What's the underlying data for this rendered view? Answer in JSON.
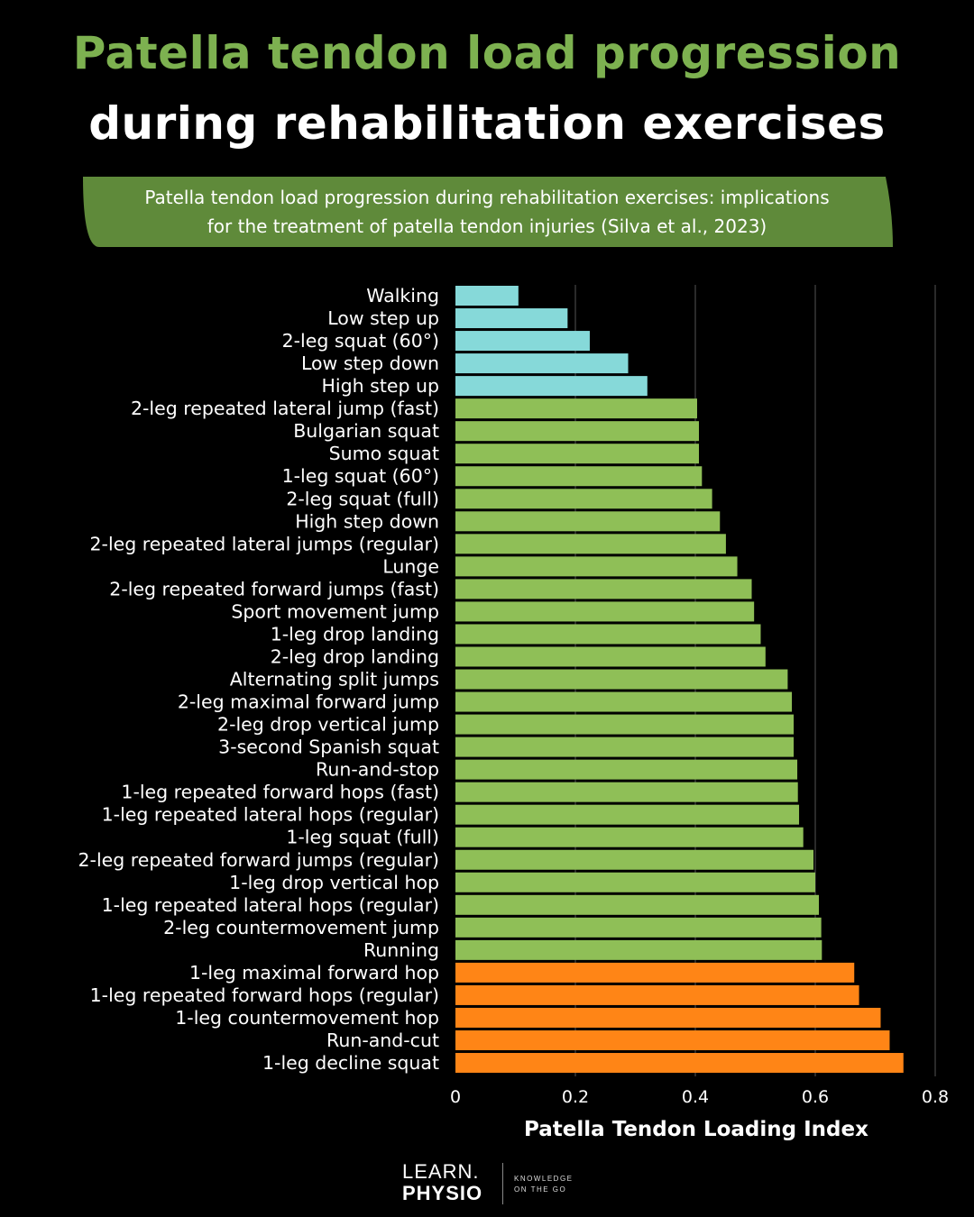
{
  "header": {
    "title_line1": "Patella tendon load progression",
    "title_line2": "during rehabilitation exercises",
    "subtitle_line1": "Patella tendon load progression during rehabilitation exercises: implications",
    "subtitle_line2": "for the treatment of patella tendon injuries (Silva et al., 2023)"
  },
  "colors": {
    "title_green": "#7db150",
    "banner_green": "#5f8a3a",
    "low": "#86d9d9",
    "moderate": "#8fbf57",
    "high": "#ff8516",
    "grid": "#555555"
  },
  "chart_data": {
    "type": "bar",
    "orientation": "horizontal",
    "xlabel": "Patella Tendon Loading Index",
    "ylabel": "",
    "xlim": [
      0,
      0.8
    ],
    "xticks": [
      "0",
      "0.2",
      "0.4",
      "0.6",
      "0.8"
    ],
    "grid": "vertical",
    "categories": [
      "Walking",
      "Low step up",
      "2-leg squat (60°)",
      "Low step down",
      "High step up",
      "2-leg repeated lateral jump (fast)",
      "Bulgarian squat",
      "Sumo squat",
      "1-leg squat (60°)",
      "2-leg squat (full)",
      "High step down",
      "2-leg repeated lateral jumps (regular)",
      "Lunge",
      "2-leg repeated forward jumps (fast)",
      "Sport movement jump",
      "1-leg drop landing",
      "2-leg drop landing",
      "Alternating split jumps",
      "2-leg maximal forward jump",
      "2-leg drop vertical jump",
      "3-second Spanish squat",
      "Run-and-stop",
      "1-leg repeated forward hops (fast)",
      "1-leg repeated lateral hops (regular)",
      "1-leg squat (full)",
      "2-leg repeated forward jumps (regular)",
      "1-leg drop vertical hop",
      "1-leg repeated lateral hops (regular)",
      "2-leg countermovement jump",
      "Running",
      "1-leg maximal forward hop",
      "1-leg repeated forward hops (regular)",
      "1-leg countermovement hop",
      "Run-and-cut",
      "1-leg decline squat"
    ],
    "values": [
      0.105,
      0.187,
      0.224,
      0.288,
      0.32,
      0.403,
      0.406,
      0.406,
      0.411,
      0.428,
      0.441,
      0.451,
      0.47,
      0.494,
      0.498,
      0.509,
      0.517,
      0.554,
      0.561,
      0.564,
      0.564,
      0.57,
      0.571,
      0.573,
      0.58,
      0.597,
      0.6,
      0.606,
      0.61,
      0.611,
      0.665,
      0.673,
      0.709,
      0.724,
      0.747
    ],
    "groups": [
      "low",
      "low",
      "low",
      "low",
      "low",
      "moderate",
      "moderate",
      "moderate",
      "moderate",
      "moderate",
      "moderate",
      "moderate",
      "moderate",
      "moderate",
      "moderate",
      "moderate",
      "moderate",
      "moderate",
      "moderate",
      "moderate",
      "moderate",
      "moderate",
      "moderate",
      "moderate",
      "moderate",
      "moderate",
      "moderate",
      "moderate",
      "moderate",
      "moderate",
      "high",
      "high",
      "high",
      "high",
      "high"
    ]
  },
  "footer": {
    "logo_line1": "LEARN.",
    "logo_line2": "PHYSIO",
    "tagline_line1": "KNOWLEDGE",
    "tagline_line2": "ON THE GO"
  }
}
